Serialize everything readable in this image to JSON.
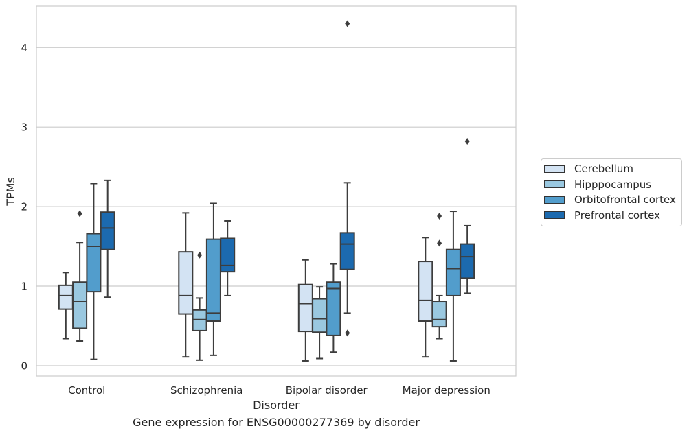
{
  "chart_data": {
    "type": "box",
    "xlabel": "Disorder",
    "ylabel": "TPMs",
    "caption": "Gene expression for ENSG00000277369 by disorder",
    "ylim": [
      -0.13,
      4.52
    ],
    "yticks": [
      0,
      1,
      2,
      3,
      4
    ],
    "grid": "horizontal",
    "legend_position": "right",
    "categories": [
      "Control",
      "Schizophrenia",
      "Bipolar disorder",
      "Major depression"
    ],
    "series": [
      {
        "name": "Cerebellum",
        "color": "#d3e3f3",
        "boxes": [
          {
            "whisker_low": 0.34,
            "q1": 0.71,
            "median": 0.88,
            "q3": 1.01,
            "whisker_high": 1.17,
            "outliers": []
          },
          {
            "whisker_low": 0.11,
            "q1": 0.65,
            "median": 0.88,
            "q3": 1.43,
            "whisker_high": 1.92,
            "outliers": []
          },
          {
            "whisker_low": 0.06,
            "q1": 0.43,
            "median": 0.78,
            "q3": 1.02,
            "whisker_high": 1.33,
            "outliers": []
          },
          {
            "whisker_low": 0.11,
            "q1": 0.56,
            "median": 0.82,
            "q3": 1.31,
            "whisker_high": 1.61,
            "outliers": []
          }
        ]
      },
      {
        "name": "Hipppocampus",
        "color": "#9ac8e0",
        "boxes": [
          {
            "whisker_low": 0.31,
            "q1": 0.47,
            "median": 0.81,
            "q3": 1.05,
            "whisker_high": 1.55,
            "outliers": [
              1.91
            ]
          },
          {
            "whisker_low": 0.07,
            "q1": 0.44,
            "median": 0.58,
            "q3": 0.7,
            "whisker_high": 0.85,
            "outliers": [
              1.39
            ]
          },
          {
            "whisker_low": 0.09,
            "q1": 0.42,
            "median": 0.59,
            "q3": 0.84,
            "whisker_high": 0.99,
            "outliers": []
          },
          {
            "whisker_low": 0.34,
            "q1": 0.49,
            "median": 0.58,
            "q3": 0.81,
            "whisker_high": 0.88,
            "outliers": [
              1.88,
              1.54
            ]
          }
        ]
      },
      {
        "name": "Orbitofrontal cortex",
        "color": "#529dcc",
        "boxes": [
          {
            "whisker_low": 0.08,
            "q1": 0.93,
            "median": 1.5,
            "q3": 1.66,
            "whisker_high": 2.29,
            "outliers": []
          },
          {
            "whisker_low": 0.13,
            "q1": 0.56,
            "median": 0.66,
            "q3": 1.59,
            "whisker_high": 2.04,
            "outliers": []
          },
          {
            "whisker_low": 0.17,
            "q1": 0.38,
            "median": 0.97,
            "q3": 1.05,
            "whisker_high": 1.28,
            "outliers": []
          },
          {
            "whisker_low": 0.06,
            "q1": 0.88,
            "median": 1.22,
            "q3": 1.46,
            "whisker_high": 1.94,
            "outliers": []
          }
        ]
      },
      {
        "name": "Prefrontal cortex",
        "color": "#1c6aaf",
        "boxes": [
          {
            "whisker_low": 0.86,
            "q1": 1.46,
            "median": 1.73,
            "q3": 1.93,
            "whisker_high": 2.33,
            "outliers": []
          },
          {
            "whisker_low": 0.88,
            "q1": 1.18,
            "median": 1.26,
            "q3": 1.6,
            "whisker_high": 1.82,
            "outliers": []
          },
          {
            "whisker_low": 0.66,
            "q1": 1.21,
            "median": 1.53,
            "q3": 1.67,
            "whisker_high": 2.3,
            "outliers": [
              0.41,
              4.3
            ]
          },
          {
            "whisker_low": 0.91,
            "q1": 1.1,
            "median": 1.37,
            "q3": 1.53,
            "whisker_high": 1.76,
            "outliers": [
              2.82
            ]
          }
        ]
      }
    ]
  }
}
